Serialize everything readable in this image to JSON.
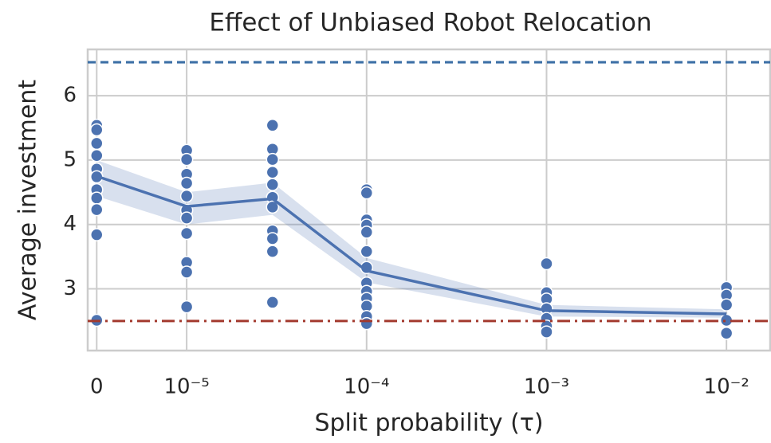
{
  "chart_data": {
    "type": "line",
    "title": "Effect of Unbiased Robot Relocation",
    "xlabel": "Split probability (τ)",
    "ylabel": "Average investment",
    "xscale": "symlog",
    "linthresh": 1e-05,
    "linscale": 0.5,
    "xlim": [
      -1e-06,
      0.0175
    ],
    "ylim": [
      2.04,
      6.72
    ],
    "xticks": [
      0,
      {
        "value": 1e-05,
        "label": "10⁻⁵"
      },
      {
        "value": 0.0001,
        "label": "10⁻⁴"
      },
      {
        "value": 0.001,
        "label": "10⁻³"
      },
      {
        "value": 0.01,
        "label": "10⁻²"
      }
    ],
    "yticks": [
      3,
      4,
      5,
      6
    ],
    "grid": true,
    "line": {
      "color": "#4c72b0",
      "x": [
        0,
        1e-05,
        3e-05,
        0.0001,
        0.001,
        0.01
      ],
      "values": [
        4.75,
        4.28,
        4.4,
        3.28,
        2.66,
        2.61
      ],
      "ci_low": [
        4.44,
        4.0,
        4.15,
        3.1,
        2.57,
        2.55
      ],
      "ci_high": [
        5.0,
        4.5,
        4.65,
        3.48,
        2.75,
        2.68
      ]
    },
    "scatter": {
      "color": "#4c72b0",
      "x": [
        0,
        0,
        0,
        0,
        0,
        0,
        0,
        0,
        0,
        0,
        0,
        1e-05,
        1e-05,
        1e-05,
        1e-05,
        1e-05,
        1e-05,
        1e-05,
        1e-05,
        1e-05,
        1e-05,
        1e-05,
        3e-05,
        3e-05,
        3e-05,
        3e-05,
        3e-05,
        3e-05,
        3e-05,
        3e-05,
        3e-05,
        3e-05,
        3e-05,
        0.0001,
        0.0001,
        0.0001,
        0.0001,
        0.0001,
        0.0001,
        0.0001,
        0.0001,
        0.0001,
        0.0001,
        0.0001,
        0.0001,
        0.0001,
        0.001,
        0.001,
        0.001,
        0.001,
        0.001,
        0.001,
        0.001,
        0.01,
        0.01,
        0.01,
        0.01,
        0.01
      ],
      "y": [
        5.54,
        5.47,
        5.26,
        5.07,
        4.86,
        4.74,
        4.54,
        4.41,
        4.23,
        3.84,
        2.51,
        5.15,
        5.01,
        4.78,
        4.64,
        4.44,
        4.22,
        4.1,
        3.86,
        3.41,
        3.26,
        2.72,
        5.54,
        5.17,
        5.01,
        4.81,
        4.62,
        4.42,
        4.27,
        3.9,
        3.78,
        3.58,
        2.79,
        4.54,
        4.49,
        4.07,
        3.99,
        3.88,
        3.58,
        3.33,
        3.09,
        2.96,
        2.85,
        2.73,
        2.57,
        2.46,
        3.39,
        2.94,
        2.84,
        2.69,
        2.54,
        2.42,
        2.33,
        3.02,
        2.9,
        2.75,
        2.51,
        2.31
      ]
    },
    "hlines": [
      {
        "value": 6.52,
        "color": "#3a6ea5",
        "style": "dashed"
      },
      {
        "value": 2.5,
        "color": "#a33a2e",
        "style": "dashdot"
      }
    ]
  }
}
